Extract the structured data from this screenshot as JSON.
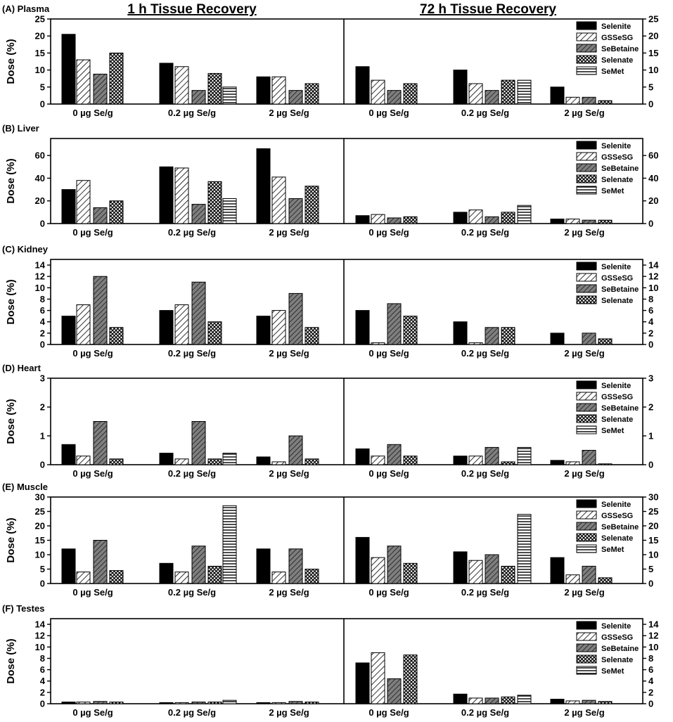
{
  "titles": {
    "left": "1 h Tissue Recovery",
    "right": "72 h Tissue Recovery"
  },
  "series_names": [
    "Selenite",
    "GSSeSG",
    "SeBetaine",
    "Selenate",
    "SeMet"
  ],
  "colors": {
    "selenite": "#000000",
    "gsseg": "#d9d9d9",
    "sebetaine": "#808080",
    "selenate": "#ffffff",
    "semet": "#ffffff",
    "axis": "#000000"
  },
  "chart_data": [
    {
      "type": "bar",
      "panel_label": "(A) Plasma",
      "ylabel": "Dose (%)",
      "ylim": [
        0,
        25
      ],
      "yticks": [
        0,
        5,
        10,
        15,
        20,
        25
      ],
      "categories": [
        "0 µg Se/g",
        "0.2 µg Se/g",
        "2 µg Se/g"
      ],
      "legend_series": [
        "Selenite",
        "GSSeSG",
        "SeBetaine",
        "Selenate",
        "SeMet"
      ],
      "left_1h": [
        [
          20.5,
          13,
          8.8,
          15,
          null
        ],
        [
          12,
          11,
          4,
          9,
          5
        ],
        [
          8,
          8,
          4,
          6,
          null
        ]
      ],
      "right_72h": [
        [
          11,
          7,
          4,
          6,
          null
        ],
        [
          10,
          6,
          4,
          7,
          7
        ],
        [
          5,
          2,
          2,
          1,
          null
        ]
      ]
    },
    {
      "type": "bar",
      "panel_label": "(B) Liver",
      "ylabel": "Dose (%)",
      "ylim": [
        0,
        75
      ],
      "yticks": [
        0,
        20,
        40,
        60
      ],
      "categories": [
        "0 µg Se/g",
        "0.2 µg Se/g",
        "2 µg Se/g"
      ],
      "legend_series": [
        "Selenite",
        "GSSeSG",
        "SeBetaine",
        "Selenate",
        "SeMet"
      ],
      "left_1h": [
        [
          30,
          38,
          14,
          20,
          null
        ],
        [
          50,
          49,
          17,
          37,
          22
        ],
        [
          66,
          41,
          22,
          33,
          null
        ]
      ],
      "right_72h": [
        [
          7,
          8,
          5,
          6,
          null
        ],
        [
          10,
          12,
          6,
          10,
          16
        ],
        [
          4,
          4,
          3,
          3,
          null
        ]
      ]
    },
    {
      "type": "bar",
      "panel_label": "(C) Kidney",
      "ylabel": "Dose (%)",
      "ylim": [
        0,
        15
      ],
      "yticks": [
        0,
        2,
        4,
        6,
        8,
        10,
        12,
        14
      ],
      "categories": [
        "0 µg Se/g",
        "0.2 µg Se/g",
        "2 µg Se/g"
      ],
      "legend_series": [
        "Selenite",
        "GSSeSG",
        "SeBetaine",
        "Selenate"
      ],
      "left_1h": [
        [
          5,
          7,
          12,
          3,
          null
        ],
        [
          6,
          7,
          11,
          4,
          null
        ],
        [
          5,
          6,
          9,
          3,
          null
        ]
      ],
      "right_72h": [
        [
          6,
          0.3,
          7.2,
          5,
          null
        ],
        [
          4,
          0.3,
          3,
          3,
          null
        ],
        [
          2,
          null,
          2,
          1,
          null
        ]
      ]
    },
    {
      "type": "bar",
      "panel_label": "(D) Heart",
      "ylabel": "Dose (%)",
      "ylim": [
        0,
        3
      ],
      "yticks": [
        0,
        1,
        2,
        3
      ],
      "categories": [
        "0 µg Se/g",
        "0.2 µg Se/g",
        "2 µg Se/g"
      ],
      "legend_series": [
        "Selenite",
        "GSSeSG",
        "SeBetaine",
        "Selenate",
        "SeMet"
      ],
      "left_1h": [
        [
          0.7,
          0.3,
          1.5,
          0.2,
          null
        ],
        [
          0.4,
          0.2,
          1.5,
          0.2,
          0.4
        ],
        [
          0.27,
          0.1,
          1,
          0.2,
          null
        ]
      ],
      "right_72h": [
        [
          0.55,
          0.3,
          0.7,
          0.3,
          null
        ],
        [
          0.3,
          0.3,
          0.6,
          0.1,
          0.6
        ],
        [
          0.15,
          0.1,
          0.5,
          0.03,
          null
        ]
      ]
    },
    {
      "type": "bar",
      "panel_label": "(E) Muscle",
      "ylabel": "Dose (%)",
      "ylim": [
        0,
        30
      ],
      "yticks": [
        0,
        5,
        10,
        15,
        20,
        25,
        30
      ],
      "categories": [
        "0 µg Se/g",
        "0.2 µg Se/g",
        "2 µg Se/g"
      ],
      "legend_series": [
        "Selenite",
        "GSSeSG",
        "SeBetaine",
        "Selenate",
        "SeMet"
      ],
      "left_1h": [
        [
          12,
          4,
          15,
          4.5,
          null
        ],
        [
          7,
          4,
          13,
          6,
          27
        ],
        [
          12,
          4,
          12,
          5,
          null
        ]
      ],
      "right_72h": [
        [
          16,
          9,
          13,
          7,
          null
        ],
        [
          11,
          8,
          10,
          6,
          24
        ],
        [
          9,
          3,
          6,
          2,
          null
        ]
      ]
    },
    {
      "type": "bar",
      "panel_label": "(F) Testes",
      "ylabel": "Dose (%)",
      "ylim": [
        0,
        15
      ],
      "yticks": [
        0,
        2,
        4,
        6,
        8,
        10,
        12,
        14
      ],
      "categories": [
        "0 µg Se/g",
        "0.2 µg Se/g",
        "2 µg Se/g"
      ],
      "legend_series": [
        "Selenite",
        "GSSeSG",
        "SeBetaine",
        "Selenate",
        "SeMet"
      ],
      "left_1h": [
        [
          0.3,
          0.3,
          0.4,
          0.3,
          null
        ],
        [
          0.2,
          0.2,
          0.3,
          0.3,
          0.6
        ],
        [
          0.2,
          0.2,
          0.4,
          0.3,
          null
        ]
      ],
      "right_72h": [
        [
          7.2,
          9,
          4.4,
          8.6,
          null
        ],
        [
          1.7,
          1,
          1,
          1.2,
          1.5
        ],
        [
          0.8,
          0.5,
          0.6,
          0.4,
          null
        ]
      ]
    }
  ]
}
